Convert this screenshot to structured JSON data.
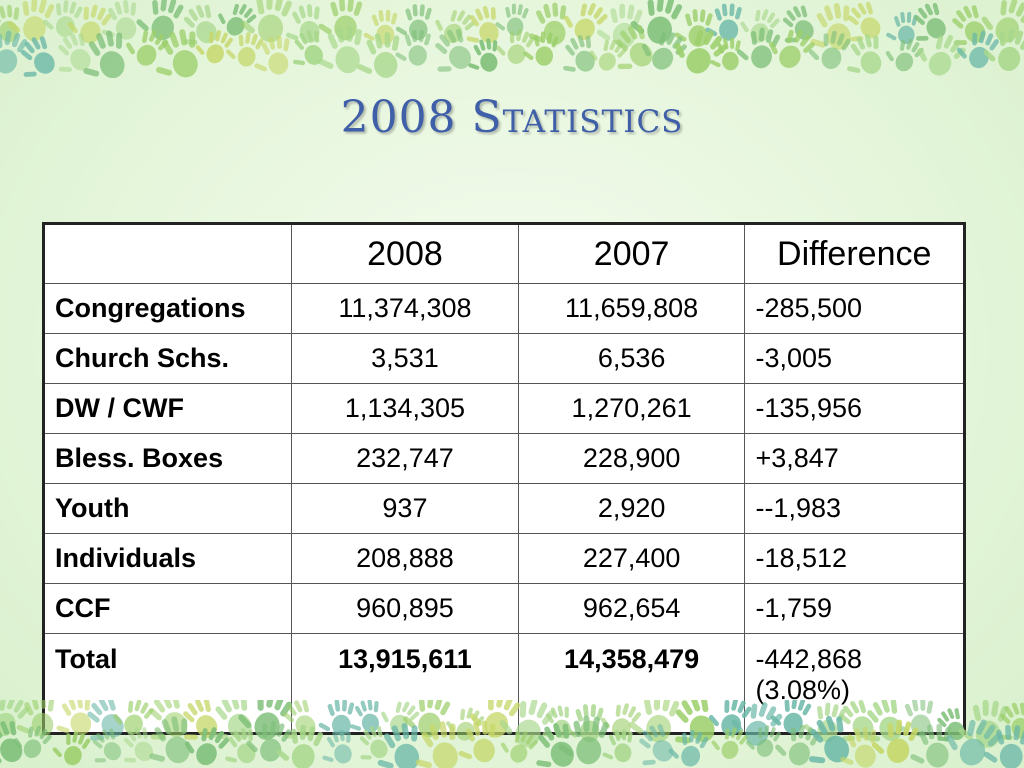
{
  "title": "2008 Statistics",
  "colors": {
    "title": "#3f5fa8",
    "background": "#e6f6dc",
    "hands": [
      "#7fc07a",
      "#9ccf6a",
      "#c6d86a",
      "#6bb8a8",
      "#a8d88c"
    ]
  },
  "table": {
    "headers": [
      "",
      "2008",
      "2007",
      "Difference"
    ],
    "rows": [
      {
        "label": "Congregations",
        "y2008": "11,374,308",
        "y2007": "11,659,808",
        "difference": "-285,500"
      },
      {
        "label": "Church Schs.",
        "y2008": "3,531",
        "y2007": "6,536",
        "difference": "-3,005"
      },
      {
        "label": "DW / CWF",
        "y2008": "1,134,305",
        "y2007": "1,270,261",
        "difference": "-135,956"
      },
      {
        "label": "Bless. Boxes",
        "y2008": "232,747",
        "y2007": "228,900",
        "difference": "+3,847"
      },
      {
        "label": "Youth",
        "y2008": "937",
        "y2007": "2,920",
        "difference": "--1,983"
      },
      {
        "label": "Individuals",
        "y2008": "208,888",
        "y2007": "227,400",
        "difference": "-18,512"
      },
      {
        "label": "CCF",
        "y2008": "960,895",
        "y2007": "962,654",
        "difference": "-1,759"
      }
    ],
    "total": {
      "label": "Total",
      "y2008": "13,915,611",
      "y2007": "14,358,479",
      "difference": "-442,868",
      "difference_pct": "(3.08%)"
    }
  }
}
